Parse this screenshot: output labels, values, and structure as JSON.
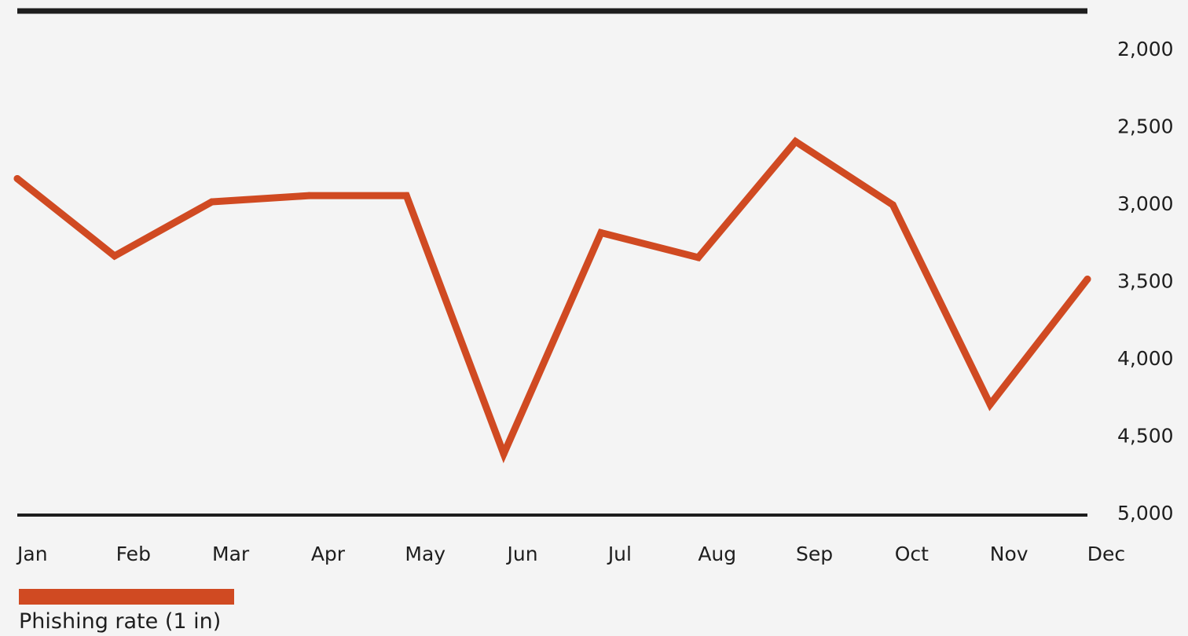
{
  "chart_data": {
    "type": "line",
    "categories": [
      "Jan",
      "Feb",
      "Mar",
      "Apr",
      "May",
      "Jun",
      "Jul",
      "Aug",
      "Sep",
      "Oct",
      "Nov",
      "Dec"
    ],
    "y_tick_labels": [
      "2,000",
      "2,500",
      "3,000",
      "3,500",
      "4,000",
      "4,500",
      "5,000"
    ],
    "y_ticks": [
      2000,
      2500,
      3000,
      3500,
      4000,
      4500,
      5000
    ],
    "ylim": [
      2000,
      5000
    ],
    "y_axis_inverted": true,
    "y_axis_position": "right",
    "grid": false,
    "legend_position": "bottom-left",
    "series": [
      {
        "name": "Phishing rate (1 in)",
        "color": "#d04a22",
        "values": [
          2840,
          3340,
          2990,
          2950,
          2950,
          4620,
          3190,
          3350,
          2600,
          3010,
          4300,
          3490
        ]
      }
    ]
  },
  "colors": {
    "background": "#f4f4f4",
    "axis": "#1e1e1e",
    "series": "#d04a22"
  }
}
